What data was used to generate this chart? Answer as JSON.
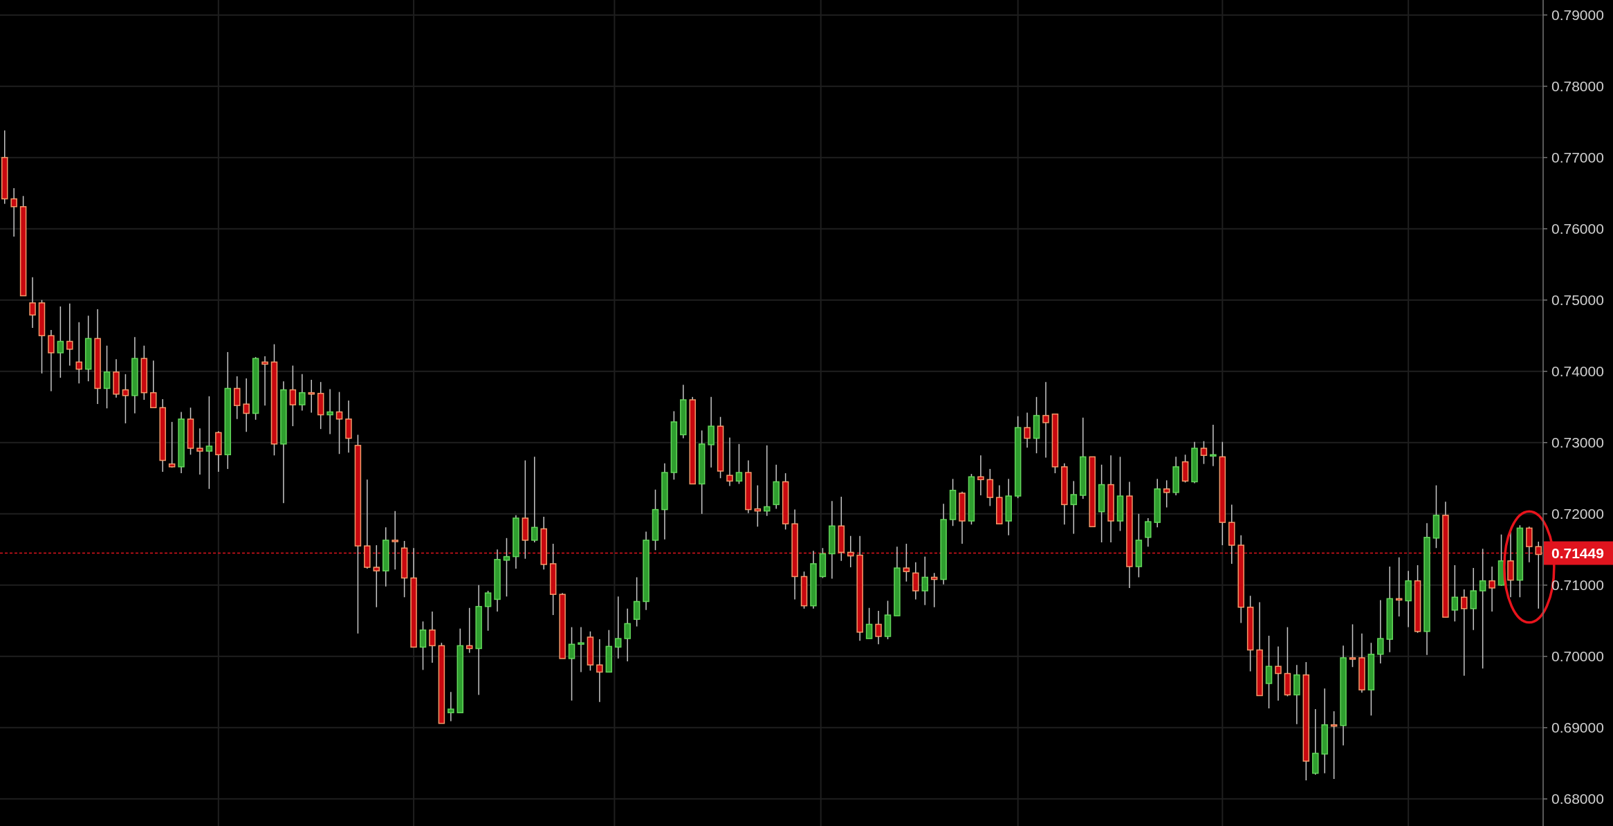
{
  "chart_data": {
    "type": "candlestick",
    "categories": [
      null,
      null,
      null,
      null,
      null,
      null,
      null,
      null,
      null,
      null,
      null,
      null,
      null,
      null,
      null,
      null,
      null,
      null,
      null,
      null,
      null,
      null,
      null,
      null,
      null,
      null,
      null,
      null,
      null,
      null,
      null,
      null,
      null,
      null,
      null,
      null,
      null,
      null,
      null,
      null,
      null,
      null,
      null,
      null,
      null,
      null,
      null,
      null,
      null,
      null,
      null,
      null,
      null,
      null,
      null,
      null,
      null,
      null,
      null,
      null,
      null,
      null,
      null,
      null,
      null,
      null,
      null,
      null,
      null,
      null,
      null,
      null,
      null,
      null,
      null,
      null,
      null,
      null,
      null,
      null,
      null,
      null,
      null,
      null,
      null,
      null,
      null,
      null,
      null,
      null,
      null,
      null,
      null,
      null,
      null,
      null,
      null,
      null,
      null,
      null,
      null,
      null,
      null,
      null,
      null,
      null,
      null,
      null,
      null,
      null,
      null,
      null,
      null,
      null,
      null,
      null,
      null,
      null,
      null,
      null,
      null,
      null,
      null,
      null,
      null,
      null,
      null,
      null,
      null,
      null,
      null,
      null,
      null,
      null,
      null,
      null,
      null,
      null,
      null,
      null,
      null,
      null,
      null,
      null,
      null,
      null,
      null,
      null,
      null,
      null,
      null,
      null,
      null,
      null,
      null,
      null,
      null,
      null,
      null,
      null,
      null,
      null,
      null,
      null,
      null,
      null
    ],
    "ohlc": [
      [
        0.77,
        0.7738,
        0.7635,
        0.7642
      ],
      [
        0.7642,
        0.7657,
        0.7589,
        0.7631
      ],
      [
        0.7631,
        0.7646,
        0.7506,
        0.7506
      ],
      [
        0.7496,
        0.7532,
        0.7461,
        0.7479
      ],
      [
        0.7496,
        0.75,
        0.7397,
        0.745
      ],
      [
        0.745,
        0.7458,
        0.7372,
        0.7426
      ],
      [
        0.7426,
        0.7491,
        0.7391,
        0.7442
      ],
      [
        0.7442,
        0.7495,
        0.7408,
        0.7431
      ],
      [
        0.7413,
        0.7469,
        0.7383,
        0.7403
      ],
      [
        0.7403,
        0.7478,
        0.7386,
        0.7446
      ],
      [
        0.7446,
        0.7487,
        0.7354,
        0.7376
      ],
      [
        0.7376,
        0.7436,
        0.7348,
        0.7399
      ],
      [
        0.7399,
        0.7417,
        0.7363,
        0.7368
      ],
      [
        0.7374,
        0.7396,
        0.7327,
        0.7366
      ],
      [
        0.7366,
        0.7448,
        0.7341,
        0.7418
      ],
      [
        0.7418,
        0.7436,
        0.736,
        0.737
      ],
      [
        0.737,
        0.7415,
        0.7349,
        0.7349
      ],
      [
        0.7349,
        0.7361,
        0.7259,
        0.7275
      ],
      [
        0.727,
        0.7329,
        0.7265,
        0.7266
      ],
      [
        0.7266,
        0.7343,
        0.7257,
        0.7333
      ],
      [
        0.7333,
        0.7349,
        0.7283,
        0.7292
      ],
      [
        0.7292,
        0.732,
        0.7255,
        0.7288
      ],
      [
        0.7288,
        0.7365,
        0.7235,
        0.7295
      ],
      [
        0.7314,
        0.7316,
        0.7259,
        0.7283
      ],
      [
        0.7283,
        0.7427,
        0.7263,
        0.7376
      ],
      [
        0.7376,
        0.7393,
        0.7333,
        0.7352
      ],
      [
        0.7354,
        0.739,
        0.7315,
        0.7341
      ],
      [
        0.7341,
        0.742,
        0.7332,
        0.7418
      ],
      [
        0.7413,
        0.7421,
        0.7352,
        0.741
      ],
      [
        0.7413,
        0.7438,
        0.7282,
        0.7298
      ],
      [
        0.7298,
        0.7386,
        0.7215,
        0.7374
      ],
      [
        0.7374,
        0.7408,
        0.7323,
        0.7353
      ],
      [
        0.7353,
        0.7396,
        0.7345,
        0.737
      ],
      [
        0.737,
        0.7388,
        0.7342,
        0.7368
      ],
      [
        0.7369,
        0.7385,
        0.7319,
        0.7339
      ],
      [
        0.7339,
        0.7375,
        0.7312,
        0.7343
      ],
      [
        0.7343,
        0.7371,
        0.7284,
        0.7333
      ],
      [
        0.7333,
        0.7359,
        0.7286,
        0.7306
      ],
      [
        0.7296,
        0.7311,
        0.7032,
        0.7155
      ],
      [
        0.7155,
        0.7248,
        0.7123,
        0.7125
      ],
      [
        0.7125,
        0.7156,
        0.7069,
        0.712
      ],
      [
        0.712,
        0.7181,
        0.7098,
        0.7163
      ],
      [
        0.7163,
        0.7204,
        0.7122,
        0.7161
      ],
      [
        0.7152,
        0.7162,
        0.7083,
        0.711
      ],
      [
        0.711,
        0.7152,
        0.7013,
        0.7013
      ],
      [
        0.7013,
        0.7049,
        0.6981,
        0.7037
      ],
      [
        0.7037,
        0.7063,
        0.6991,
        0.7015
      ],
      [
        0.7015,
        0.7019,
        0.6906,
        0.6906
      ],
      [
        0.6921,
        0.695,
        0.6909,
        0.6926
      ],
      [
        0.6921,
        0.7039,
        0.6921,
        0.7015
      ],
      [
        0.7015,
        0.7068,
        0.7005,
        0.7011
      ],
      [
        0.7011,
        0.71,
        0.6946,
        0.707
      ],
      [
        0.707,
        0.7092,
        0.7036,
        0.7089
      ],
      [
        0.708,
        0.715,
        0.7063,
        0.7136
      ],
      [
        0.7135,
        0.7166,
        0.7084,
        0.714
      ],
      [
        0.714,
        0.7198,
        0.7123,
        0.7194
      ],
      [
        0.7194,
        0.7275,
        0.7137,
        0.7163
      ],
      [
        0.7163,
        0.728,
        0.716,
        0.7181
      ],
      [
        0.7179,
        0.7196,
        0.7122,
        0.7129
      ],
      [
        0.713,
        0.7158,
        0.7058,
        0.7087
      ],
      [
        0.7087,
        0.7089,
        0.6997,
        0.6997
      ],
      [
        0.6997,
        0.7041,
        0.6938,
        0.7017
      ],
      [
        0.7017,
        0.7041,
        0.6978,
        0.7019
      ],
      [
        0.7027,
        0.7035,
        0.698,
        0.6988
      ],
      [
        0.6988,
        0.7024,
        0.6936,
        0.6978
      ],
      [
        0.6978,
        0.7037,
        0.6978,
        0.7014
      ],
      [
        0.7013,
        0.7084,
        0.6997,
        0.7025
      ],
      [
        0.7025,
        0.7067,
        0.6993,
        0.7046
      ],
      [
        0.7052,
        0.7111,
        0.7042,
        0.7077
      ],
      [
        0.7077,
        0.7175,
        0.7065,
        0.7163
      ],
      [
        0.7163,
        0.7234,
        0.7149,
        0.7206
      ],
      [
        0.7206,
        0.7271,
        0.7164,
        0.7258
      ],
      [
        0.7258,
        0.7344,
        0.7248,
        0.7329
      ],
      [
        0.7311,
        0.7381,
        0.7306,
        0.736
      ],
      [
        0.736,
        0.7364,
        0.7242,
        0.7242
      ],
      [
        0.7242,
        0.7317,
        0.72,
        0.7298
      ],
      [
        0.7297,
        0.7364,
        0.7265,
        0.7323
      ],
      [
        0.7323,
        0.7336,
        0.725,
        0.726
      ],
      [
        0.7254,
        0.7307,
        0.7239,
        0.7246
      ],
      [
        0.7246,
        0.7298,
        0.7242,
        0.7258
      ],
      [
        0.7258,
        0.7275,
        0.7201,
        0.7206
      ],
      [
        0.7207,
        0.724,
        0.7182,
        0.7204
      ],
      [
        0.7204,
        0.7296,
        0.7197,
        0.721
      ],
      [
        0.7213,
        0.7269,
        0.7207,
        0.7245
      ],
      [
        0.7245,
        0.7257,
        0.7178,
        0.7186
      ],
      [
        0.7186,
        0.7206,
        0.708,
        0.7112
      ],
      [
        0.7112,
        0.7119,
        0.7067,
        0.7071
      ],
      [
        0.7071,
        0.7148,
        0.7067,
        0.713
      ],
      [
        0.7112,
        0.7152,
        0.711,
        0.7144
      ],
      [
        0.7144,
        0.7218,
        0.7109,
        0.7183
      ],
      [
        0.7183,
        0.7224,
        0.7134,
        0.7146
      ],
      [
        0.7146,
        0.7169,
        0.7125,
        0.7141
      ],
      [
        0.7142,
        0.7169,
        0.7022,
        0.7034
      ],
      [
        0.7025,
        0.7068,
        0.7025,
        0.7045
      ],
      [
        0.7045,
        0.7064,
        0.7017,
        0.7028
      ],
      [
        0.7028,
        0.7078,
        0.7024,
        0.7058
      ],
      [
        0.7057,
        0.7154,
        0.7057,
        0.7124
      ],
      [
        0.7124,
        0.7158,
        0.7105,
        0.7119
      ],
      [
        0.7117,
        0.7132,
        0.708,
        0.7092
      ],
      [
        0.7092,
        0.714,
        0.7072,
        0.7111
      ],
      [
        0.7111,
        0.7117,
        0.7069,
        0.7108
      ],
      [
        0.7108,
        0.7214,
        0.7101,
        0.7192
      ],
      [
        0.7192,
        0.7249,
        0.7183,
        0.7233
      ],
      [
        0.7229,
        0.7231,
        0.7158,
        0.719
      ],
      [
        0.719,
        0.7256,
        0.7185,
        0.7252
      ],
      [
        0.7252,
        0.7282,
        0.7226,
        0.7248
      ],
      [
        0.7248,
        0.7263,
        0.7211,
        0.7223
      ],
      [
        0.7223,
        0.724,
        0.7186,
        0.7186
      ],
      [
        0.719,
        0.7249,
        0.717,
        0.7225
      ],
      [
        0.7225,
        0.7337,
        0.7222,
        0.7321
      ],
      [
        0.7321,
        0.7342,
        0.7293,
        0.7306
      ],
      [
        0.7306,
        0.7364,
        0.7285,
        0.7338
      ],
      [
        0.7338,
        0.7385,
        0.7279,
        0.7328
      ],
      [
        0.734,
        0.734,
        0.7257,
        0.7266
      ],
      [
        0.7266,
        0.7271,
        0.7185,
        0.7213
      ],
      [
        0.7213,
        0.7246,
        0.7172,
        0.7227
      ],
      [
        0.7226,
        0.7335,
        0.7221,
        0.728
      ],
      [
        0.728,
        0.728,
        0.7182,
        0.7182
      ],
      [
        0.7203,
        0.7269,
        0.716,
        0.7241
      ],
      [
        0.7241,
        0.7282,
        0.716,
        0.719
      ],
      [
        0.719,
        0.728,
        0.7176,
        0.7225
      ],
      [
        0.7225,
        0.7245,
        0.7096,
        0.7126
      ],
      [
        0.7126,
        0.72,
        0.7111,
        0.7163
      ],
      [
        0.7167,
        0.7194,
        0.7154,
        0.7189
      ],
      [
        0.7188,
        0.7249,
        0.7181,
        0.7235
      ],
      [
        0.7235,
        0.7247,
        0.7209,
        0.723
      ],
      [
        0.723,
        0.728,
        0.7226,
        0.7266
      ],
      [
        0.7273,
        0.7283,
        0.7244,
        0.7246
      ],
      [
        0.7245,
        0.7301,
        0.7243,
        0.7292
      ],
      [
        0.7292,
        0.7302,
        0.727,
        0.7282
      ],
      [
        0.7282,
        0.7325,
        0.7267,
        0.7283
      ],
      [
        0.728,
        0.7301,
        0.7156,
        0.7188
      ],
      [
        0.7188,
        0.7213,
        0.713,
        0.7156
      ],
      [
        0.7156,
        0.717,
        0.7047,
        0.7069
      ],
      [
        0.7069,
        0.7085,
        0.6979,
        0.7009
      ],
      [
        0.7009,
        0.7076,
        0.6945,
        0.6945
      ],
      [
        0.6962,
        0.7029,
        0.6927,
        0.6986
      ],
      [
        0.6986,
        0.7014,
        0.6938,
        0.6976
      ],
      [
        0.6976,
        0.7041,
        0.6944,
        0.6946
      ],
      [
        0.6946,
        0.6988,
        0.6905,
        0.6974
      ],
      [
        0.6974,
        0.6992,
        0.6826,
        0.6853
      ],
      [
        0.6836,
        0.6926,
        0.6834,
        0.6864
      ],
      [
        0.6863,
        0.6955,
        0.6836,
        0.6904
      ],
      [
        0.6904,
        0.6923,
        0.6828,
        0.6903
      ],
      [
        0.6903,
        0.7015,
        0.6875,
        0.6998
      ],
      [
        0.6998,
        0.7045,
        0.6985,
        0.6996
      ],
      [
        0.6998,
        0.7032,
        0.6949,
        0.6953
      ],
      [
        0.6953,
        0.7019,
        0.6917,
        0.7003
      ],
      [
        0.7003,
        0.7079,
        0.699,
        0.7025
      ],
      [
        0.7024,
        0.7126,
        0.7006,
        0.7081
      ],
      [
        0.7081,
        0.7139,
        0.7056,
        0.708
      ],
      [
        0.7078,
        0.712,
        0.7041,
        0.7106
      ],
      [
        0.7106,
        0.7128,
        0.7033,
        0.7035
      ],
      [
        0.7035,
        0.7187,
        0.7002,
        0.7167
      ],
      [
        0.7166,
        0.724,
        0.7152,
        0.7198
      ],
      [
        0.7198,
        0.7217,
        0.7055,
        0.7055
      ],
      [
        0.7065,
        0.7128,
        0.7049,
        0.7083
      ],
      [
        0.7083,
        0.7094,
        0.6973,
        0.7067
      ],
      [
        0.7067,
        0.7124,
        0.7037,
        0.7092
      ],
      [
        0.7092,
        0.7151,
        0.6983,
        0.7106
      ],
      [
        0.7106,
        0.7126,
        0.7063,
        0.7096
      ],
      [
        0.71,
        0.7171,
        0.7099,
        0.7134
      ],
      [
        0.7134,
        0.7175,
        0.7083,
        0.7107
      ],
      [
        0.7107,
        0.7184,
        0.7083,
        0.718
      ],
      [
        0.718,
        0.7182,
        0.7132,
        0.7154
      ],
      [
        0.7154,
        0.7161,
        0.7067,
        0.7143
      ]
    ],
    "ylim": [
      0.6762,
      0.7921
    ],
    "yticks": [
      {
        "value": 0.68,
        "label": "0.68000"
      },
      {
        "value": 0.69,
        "label": "0.69000"
      },
      {
        "value": 0.7,
        "label": "0.70000"
      },
      {
        "value": 0.71,
        "label": "0.71000"
      },
      {
        "value": 0.72,
        "label": "0.72000"
      },
      {
        "value": 0.73,
        "label": "0.73000"
      },
      {
        "value": 0.74,
        "label": "0.74000"
      },
      {
        "value": 0.75,
        "label": "0.75000"
      },
      {
        "value": 0.76,
        "label": "0.76000"
      },
      {
        "value": 0.77,
        "label": "0.77000"
      },
      {
        "value": 0.78,
        "label": "0.78000"
      },
      {
        "value": 0.79,
        "label": "0.79000"
      }
    ],
    "ref_lines": [
      {
        "axis": "y",
        "value": 0.71449,
        "label": "0.71449",
        "color": "#e0141e",
        "line_style": "dashed"
      }
    ],
    "grid": true,
    "tick_labels": "y"
  }
}
